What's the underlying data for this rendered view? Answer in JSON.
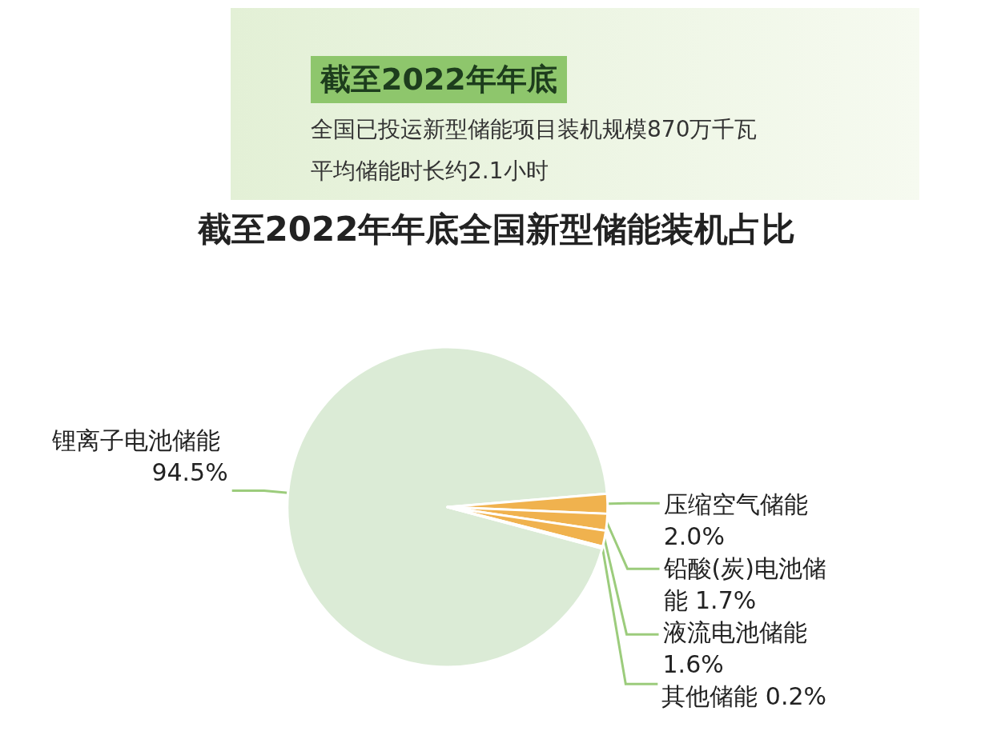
{
  "chart_data": {
    "type": "pie",
    "title": "截至2022年年底全国新型储能装机占比",
    "annotations": [
      "截至2022年年底",
      "全国已投运新型储能项目装机规模870万千瓦",
      "平均储能时长约2.1小时"
    ],
    "categories": [
      "锂离子电池储能",
      "压缩空气储能",
      "铅酸(炭)电池储能",
      "液流电池储能",
      "其他储能"
    ],
    "values": [
      94.5,
      2.0,
      1.7,
      1.6,
      0.2
    ],
    "colors": [
      "#dbebd6",
      "#f0b24e",
      "#f0b24e",
      "#f0b24e",
      "#f0b24e"
    ],
    "value_labels": [
      "94.5%",
      "2.0%",
      "1.7%",
      "1.6%",
      "0.2%"
    ],
    "legend": false
  }
}
